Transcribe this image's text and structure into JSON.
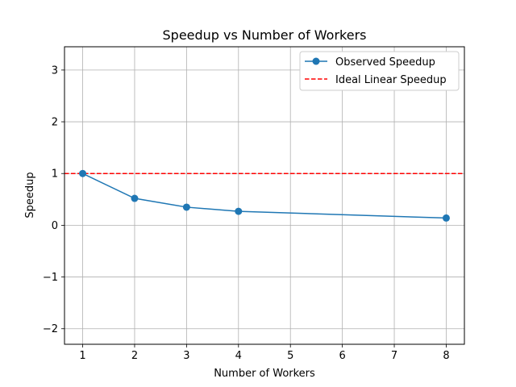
{
  "chart_data": {
    "type": "line",
    "title": "Speedup vs Number of Workers",
    "xlabel": "Number of Workers",
    "ylabel": "Speedup",
    "xlim": [
      0.65,
      8.35
    ],
    "ylim": [
      -2.3,
      3.45
    ],
    "xticks": [
      1,
      2,
      3,
      4,
      5,
      6,
      7,
      8
    ],
    "yticks": [
      -2,
      -1,
      0,
      1,
      2,
      3
    ],
    "ytick_labels": [
      "−2",
      "−1",
      "0",
      "1",
      "2",
      "3"
    ],
    "grid": true,
    "legend_position": "top-right",
    "series": [
      {
        "name": "Observed Speedup",
        "style": "line-marker",
        "color": "#1f77b4",
        "x": [
          1,
          2,
          3,
          4,
          8
        ],
        "y": [
          1.0,
          0.52,
          0.35,
          0.27,
          0.14
        ]
      },
      {
        "name": "Ideal Linear Speedup",
        "style": "dashed",
        "color": "#ff0000",
        "y_const": 1.0
      }
    ]
  }
}
